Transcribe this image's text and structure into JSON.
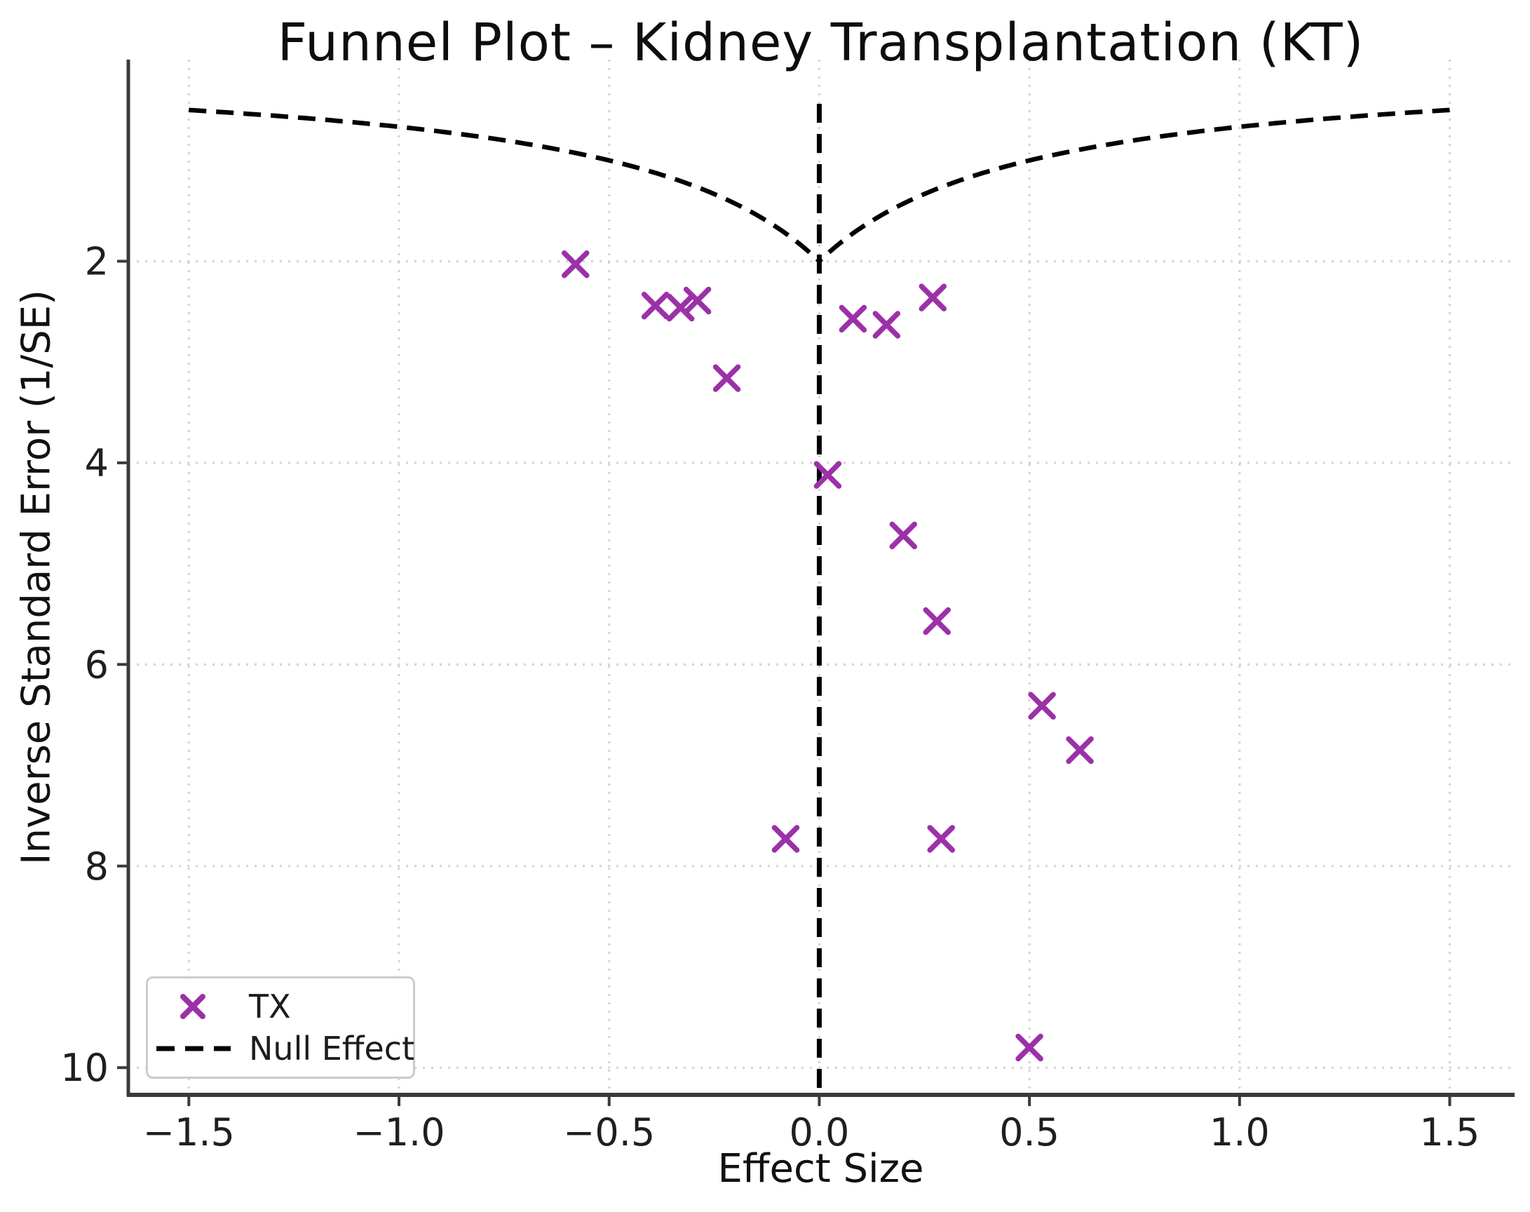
{
  "title": "Funnel Plot – Kidney Transplantation (KT)",
  "axes": {
    "xlabel": "Effect Size",
    "ylabel": "Inverse Standard Error (1/SE)",
    "x_tick_labels": [
      "−1.5",
      "−1.0",
      "−0.5",
      "0.0",
      "0.5",
      "1.0",
      "1.5"
    ],
    "x_tick_values": [
      -1.5,
      -1.0,
      -0.5,
      0.0,
      0.5,
      1.0,
      1.5
    ],
    "y_tick_labels": [
      "2",
      "4",
      "6",
      "8",
      "10"
    ],
    "y_tick_values": [
      2,
      4,
      6,
      8,
      10
    ],
    "xlim": [
      -1.644,
      1.651
    ],
    "ylim": [
      0,
      10.27
    ],
    "y_axis_inverted": true,
    "grid": true
  },
  "legend": {
    "position": "lower left",
    "items": [
      {
        "label": "TX",
        "handle": "x-marker"
      },
      {
        "label": "Null Effect",
        "handle": "dashed-line"
      }
    ]
  },
  "chart_data": {
    "type": "scatter",
    "title": "Funnel Plot – Kidney Transplantation (KT)",
    "xlabel": "Effect Size",
    "ylabel": "Inverse Standard Error (1/SE)",
    "series": [
      {
        "name": "TX",
        "marker": "x",
        "color": "#9C30A8",
        "points": [
          [
            -0.58,
            2.03
          ],
          [
            -0.39,
            2.44
          ],
          [
            -0.33,
            2.46
          ],
          [
            -0.29,
            2.39
          ],
          [
            -0.22,
            3.16
          ],
          [
            -0.08,
            7.73
          ],
          [
            0.02,
            4.12
          ],
          [
            0.08,
            2.57
          ],
          [
            0.16,
            2.63
          ],
          [
            0.2,
            4.72
          ],
          [
            0.27,
            2.36
          ],
          [
            0.28,
            5.57
          ],
          [
            0.29,
            7.73
          ],
          [
            0.5,
            9.8
          ],
          [
            0.53,
            6.41
          ],
          [
            0.62,
            6.85
          ]
        ]
      }
    ],
    "null_effect": {
      "name": "Null Effect",
      "style": "dashed",
      "line_color": "#000000",
      "vertical_line_x": 0,
      "funnel_vertex": [
        0,
        2
      ],
      "funnel_tip_left": [
        -1.5,
        0.5
      ],
      "funnel_tip_right": [
        1.5,
        0.5
      ],
      "funnel_formula": "inv_se = 1 / (0.5 + |effect|)"
    }
  },
  "colors": {
    "marker": "#9C30A8",
    "null_line": "#000000",
    "grid": "#cccccc",
    "spine": "#3a3a3a",
    "tick_text": "#1f1f1f",
    "background": "#ffffff"
  }
}
